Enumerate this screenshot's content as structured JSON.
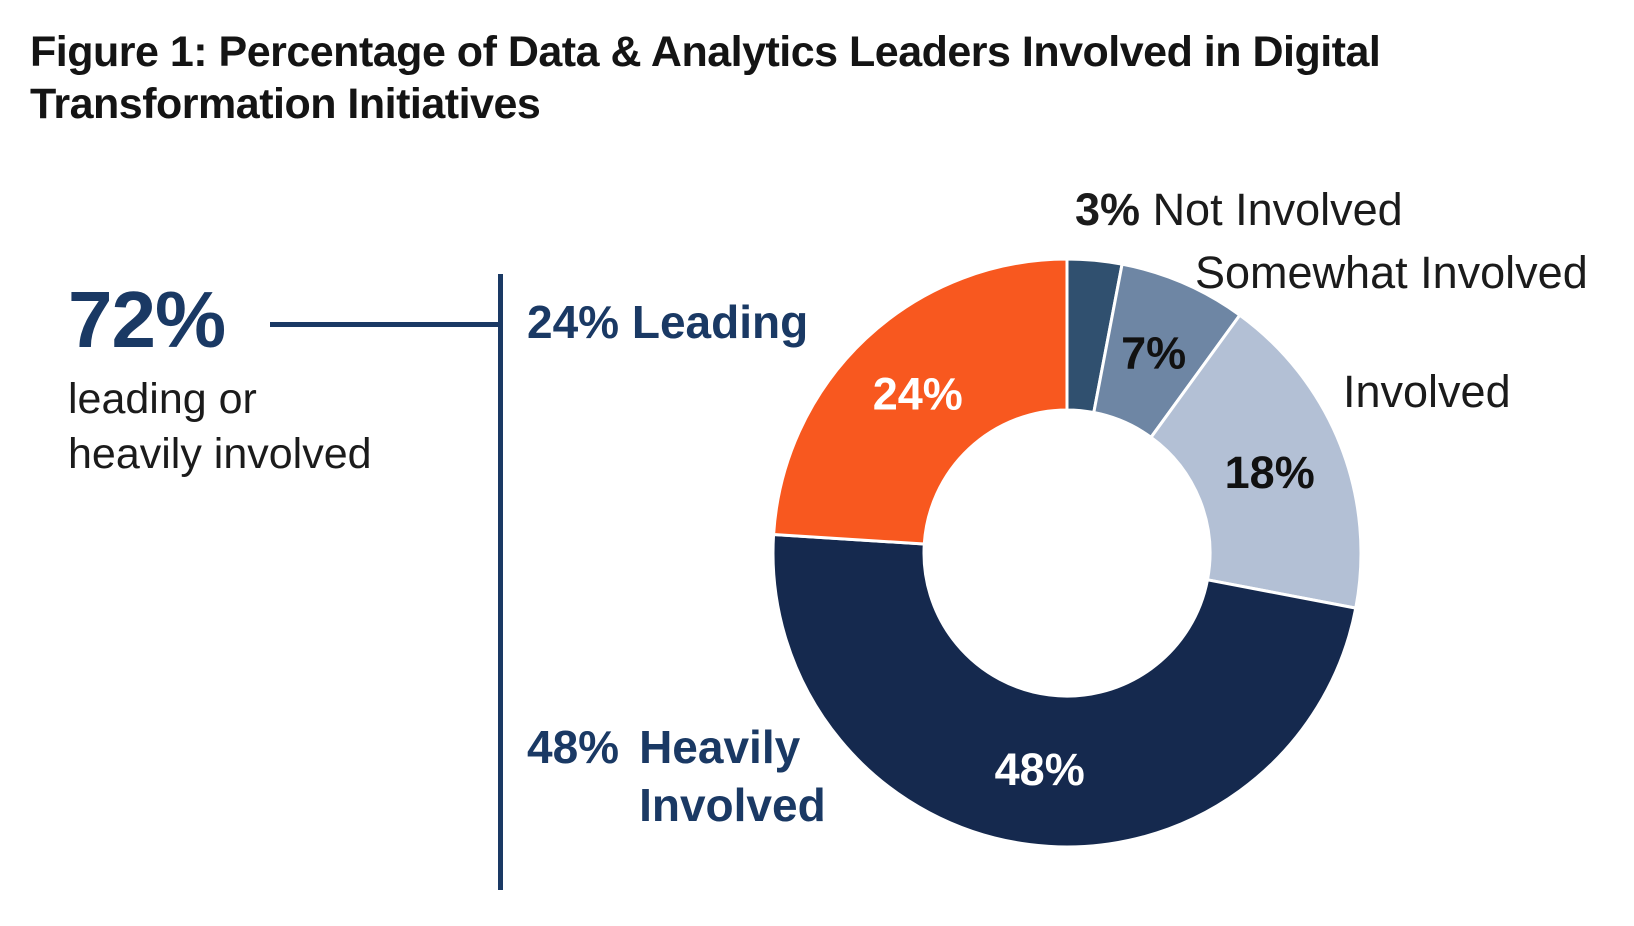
{
  "title": {
    "line1": "Figure 1: Percentage of Data & Analytics Leaders Involved in Digital",
    "line2": "Transformation Initiatives"
  },
  "summary": {
    "value": "72%",
    "caption_line1": "leading or",
    "caption_line2": "heavily involved"
  },
  "callouts": {
    "leading": "24% Leading",
    "not_involved_value": "3%",
    "not_involved_label": "Not Involved",
    "somewhat_involved": "Somewhat Involved",
    "involved": "Involved",
    "heavily_value": "48%",
    "heavily_line1": "Heavily",
    "heavily_line2": "Involved"
  },
  "colors": {
    "navy_text": "#1A3964",
    "bracket_line": "#1A3964",
    "separator": "#FFFFFF"
  },
  "chart_data": {
    "type": "pie",
    "variant": "donut",
    "title": "Percentage of Data & Analytics Leaders Involved in Digital Transformation Initiatives",
    "start_angle_deg_from_top": 0,
    "direction": "clockwise",
    "donut_hole_ratio": 0.49,
    "total": 100,
    "segments": [
      {
        "label": "Not Involved",
        "value": 3,
        "color": "#30506F",
        "inner_label": "",
        "inner_label_color": ""
      },
      {
        "label": "Somewhat Involved",
        "value": 7,
        "color": "#6E86A4",
        "inner_label": "7%",
        "inner_label_color": "#111111"
      },
      {
        "label": "Involved",
        "value": 18,
        "color": "#B3C0D5",
        "inner_label": "18%",
        "inner_label_color": "#111111"
      },
      {
        "label": "Heavily Involved",
        "value": 48,
        "color": "#15294E",
        "inner_label": "48%",
        "inner_label_color": "#FFFFFF"
      },
      {
        "label": "Leading",
        "value": 24,
        "color": "#F8581F",
        "inner_label": "24%",
        "inner_label_color": "#FFFFFF"
      }
    ],
    "summary_annotation": "72% leading or heavily involved"
  }
}
